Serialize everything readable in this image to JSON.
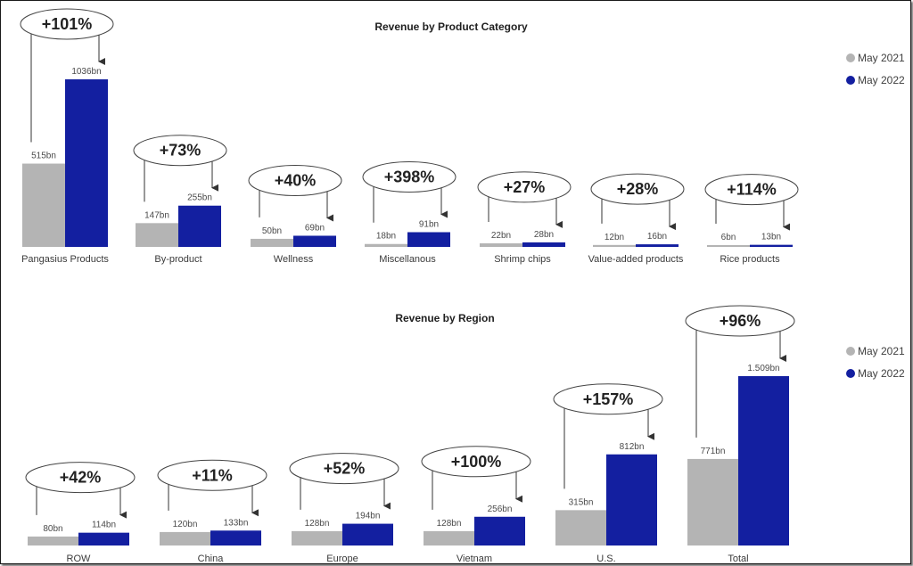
{
  "colors": {
    "may2021": "#b4b4b4",
    "may2022": "#131fa0"
  },
  "legend": [
    "May 2021",
    "May 2022"
  ],
  "chart_data": [
    {
      "type": "bar",
      "title": "Revenue by Product Category",
      "unit": "bn",
      "categories": [
        "Pangasius Products",
        "By-product",
        "Wellness",
        "Miscellanous",
        "Shrimp chips",
        "Value-added products",
        "Rice products"
      ],
      "series": [
        {
          "name": "May 2021",
          "values": [
            515,
            147,
            50,
            18,
            22,
            12,
            6
          ],
          "labels": [
            "515bn",
            "147bn",
            "50bn",
            "18bn",
            "22bn",
            "12bn",
            "6bn"
          ]
        },
        {
          "name": "May 2022",
          "values": [
            1036,
            255,
            69,
            91,
            28,
            16,
            13
          ],
          "labels": [
            "1036bn",
            "255bn",
            "69bn",
            "91bn",
            "28bn",
            "16bn",
            "13bn"
          ]
        }
      ],
      "growth": [
        "+101%",
        "+73%",
        "+40%",
        "+398%",
        "+27%",
        "+28%",
        "+114%"
      ],
      "ylim": [
        0,
        1036
      ],
      "legend_position": "top-right"
    },
    {
      "type": "bar",
      "title": "Revenue by Region",
      "unit": "bn",
      "categories": [
        "ROW",
        "China",
        "Europe",
        "Vietnam",
        "U.S.",
        "Total"
      ],
      "series": [
        {
          "name": "May 2021",
          "values": [
            80,
            120,
            128,
            128,
            315,
            771
          ],
          "labels": [
            "80bn",
            "120bn",
            "128bn",
            "128bn",
            "315bn",
            "771bn"
          ]
        },
        {
          "name": "May 2022",
          "values": [
            114,
            133,
            194,
            256,
            812,
            1509
          ],
          "labels": [
            "114bn",
            "133bn",
            "194bn",
            "256bn",
            "812bn",
            "1.509bn"
          ]
        }
      ],
      "growth": [
        "+42%",
        "+11%",
        "+52%",
        "+100%",
        "+157%",
        "+96%"
      ],
      "ylim": [
        0,
        1509
      ],
      "legend_position": "top-right"
    }
  ]
}
